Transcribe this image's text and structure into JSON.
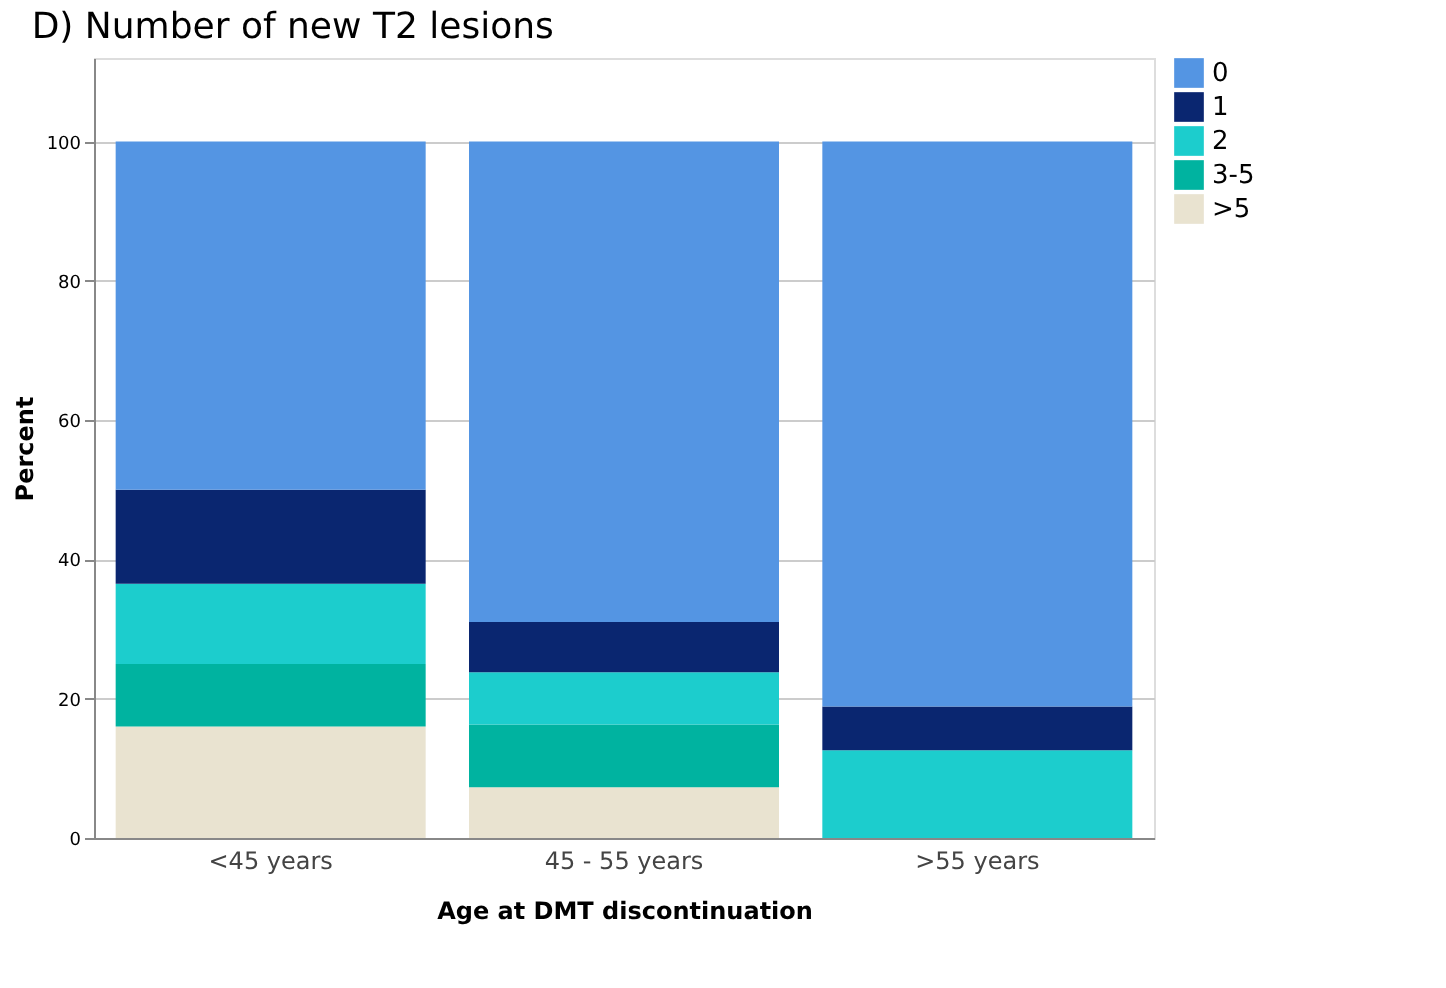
{
  "chart_data": {
    "type": "bar",
    "title": "D) Number of new T2 lesions",
    "xlabel": "Age at DMT discontinuation",
    "ylabel": "Percent",
    "categories": [
      "<45 years",
      "45 - 55 years",
      ">55 years"
    ],
    "stacked": true,
    "series": [
      {
        "name": ">5",
        "color": "#e9e3d0",
        "values": [
          16,
          7.3,
          0
        ]
      },
      {
        "name": "3-5",
        "color": "#00b3a0",
        "values": [
          9,
          9,
          0
        ]
      },
      {
        "name": "2",
        "color": "#1ccdcd",
        "values": [
          11.5,
          7.5,
          12.6
        ]
      },
      {
        "name": "1",
        "color": "#0a2670",
        "values": [
          13.5,
          7.2,
          6.3
        ]
      },
      {
        "name": "0",
        "color": "#5495e3",
        "values": [
          50,
          69,
          81.1
        ]
      }
    ],
    "ylim": [
      0,
      112
    ],
    "yticks": [
      0,
      20,
      40,
      60,
      80,
      100
    ],
    "grid": "y",
    "legend": "right"
  }
}
